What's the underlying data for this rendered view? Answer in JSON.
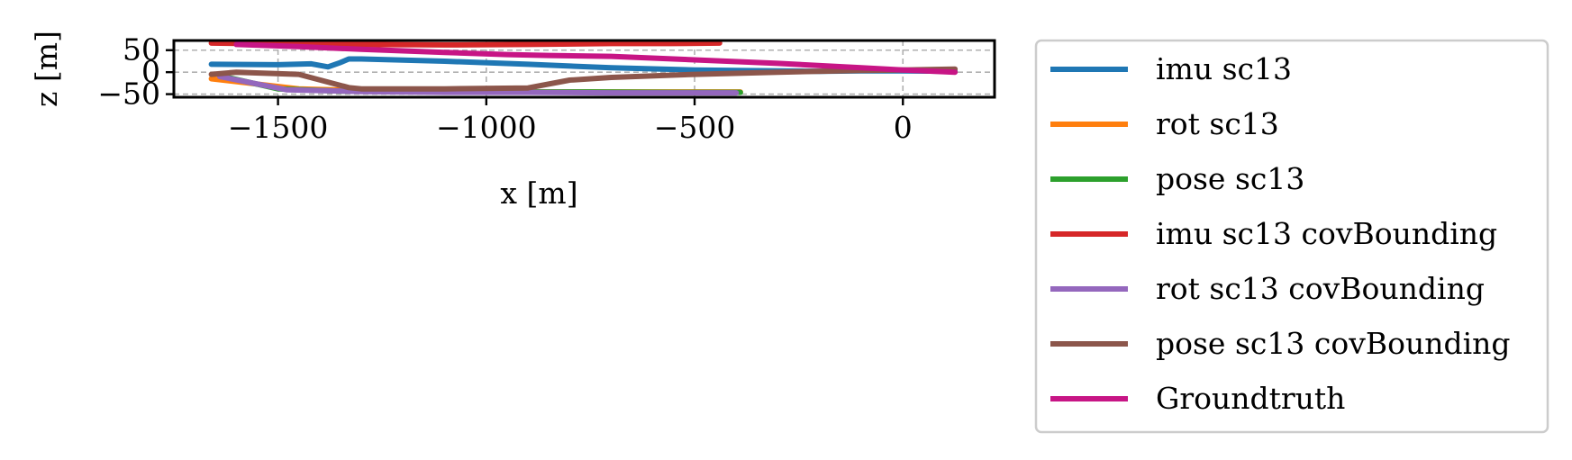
{
  "chart_data": {
    "type": "line",
    "title": "",
    "xlabel": "x [m]",
    "ylabel": "z [m]",
    "xlim": [
      -1750,
      220
    ],
    "ylim": [
      -57,
      72
    ],
    "xticks": [
      -1500,
      -1000,
      -500,
      0
    ],
    "xtick_labels": [
      "−1500",
      "−1000",
      "−500",
      "0"
    ],
    "yticks": [
      -50,
      0,
      50
    ],
    "ytick_labels": [
      "−50",
      "0",
      "50"
    ],
    "grid": true,
    "grid_style": "dashed",
    "legend_position": "outside-right",
    "series": [
      {
        "name": "imu sc13",
        "color": "#1f77b4",
        "x": [
          -1660,
          -1500,
          -1420,
          -1380,
          -1350,
          -1330,
          -1300,
          -1100,
          -900,
          -700,
          -500,
          -300,
          -200,
          -100,
          0,
          125
        ],
        "y": [
          18,
          17,
          19,
          12,
          22,
          30,
          30,
          25,
          18,
          10,
          5,
          3,
          2,
          3,
          3,
          2
        ]
      },
      {
        "name": "rot sc13",
        "color": "#ff7f0e",
        "x": [
          -1660,
          -1450,
          -1300,
          -1100,
          -900,
          -700,
          -500,
          -390
        ],
        "y": [
          -15,
          -38,
          -42,
          -43,
          -45,
          -45,
          -45,
          -45
        ]
      },
      {
        "name": "pose sc13",
        "color": "#2ca02c",
        "x": [
          -1640,
          -1500,
          -1350,
          -1150,
          -950,
          -750,
          -550,
          -390
        ],
        "y": [
          -8,
          -38,
          -43,
          -44,
          -45,
          -45,
          -46,
          -46
        ]
      },
      {
        "name": "imu sc13 covBounding",
        "color": "#d62728",
        "x": [
          -1660,
          -1500,
          -1300,
          -1100,
          -900,
          -700,
          -560,
          -440
        ],
        "y": [
          66,
          64,
          63,
          62,
          63,
          65,
          65,
          66
        ]
      },
      {
        "name": "rot sc13 covBounding",
        "color": "#9467bd",
        "x": [
          -1640,
          -1480,
          -1300,
          -1100,
          -900,
          -700,
          -500,
          -400
        ],
        "y": [
          -10,
          -40,
          -44,
          -46,
          -46,
          -47,
          -47,
          -47
        ]
      },
      {
        "name": "pose sc13 covBounding",
        "color": "#8c564b",
        "x": [
          -1660,
          -1600,
          -1450,
          -1330,
          -1300,
          -1100,
          -900,
          -800,
          -700,
          -500,
          -300,
          -100,
          0,
          125
        ],
        "y": [
          -5,
          0,
          -5,
          -35,
          -38,
          -38,
          -36,
          -18,
          -12,
          -5,
          0,
          4,
          5,
          7
        ]
      },
      {
        "name": "Groundtruth",
        "color": "#c71585",
        "x": [
          -1600,
          -1450,
          -1300,
          -1100,
          -950,
          -850,
          -700,
          -500,
          -300,
          -100,
          0,
          125
        ],
        "y": [
          63,
          58,
          52,
          45,
          40,
          38,
          36,
          28,
          20,
          10,
          5,
          0
        ]
      }
    ]
  }
}
